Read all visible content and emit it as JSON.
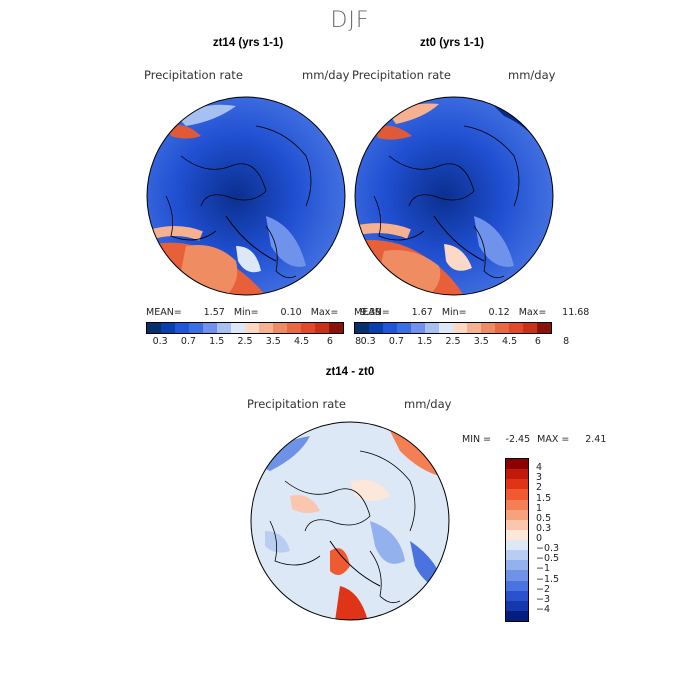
{
  "figure": {
    "title": "DJF"
  },
  "left_map": {
    "title": "zt14 (yrs 1-1)",
    "variable": "Precipitation rate",
    "units": "mm/day",
    "stats": {
      "mean_label": "MEAN=",
      "mean": "1.57",
      "min_label": "Min=",
      "min": "0.10",
      "max_label": "Max=",
      "max": "9.39"
    }
  },
  "right_map": {
    "title": "zt0 (yrs 1-1)",
    "variable": "Precipitation rate",
    "units": "mm/day",
    "stats": {
      "mean_label": "MEAN=",
      "mean": "1.67",
      "min_label": "Min=",
      "min": "0.12",
      "max_label": "Max=",
      "max": "11.68"
    }
  },
  "diff_map": {
    "title": "zt14 - zt0",
    "variable": "Precipitation rate",
    "units": "mm/day",
    "stats": {
      "min_label": "MIN =",
      "min": "-2.45",
      "max_label": "MAX =",
      "max": "2.41"
    }
  },
  "precip_colorbar": {
    "colors": [
      "#08306b",
      "#0a3fae",
      "#1f55d6",
      "#3a6fe4",
      "#6f93ec",
      "#a6c0f2",
      "#dce7f7",
      "#fbd9c6",
      "#f5b190",
      "#ee8b65",
      "#e86a45",
      "#e2482a",
      "#c93218",
      "#8b1208"
    ],
    "tick_labels": [
      "0.3",
      "0.7",
      "1.5",
      "2.5",
      "3.5",
      "4.5",
      "6",
      "8"
    ]
  },
  "diff_colorbar": {
    "colors": [
      "#8b0000",
      "#c21a0a",
      "#e03418",
      "#f05a30",
      "#f47f55",
      "#f7a27d",
      "#fac6ad",
      "#fde6da",
      "#dde8f6",
      "#b9cdf2",
      "#93b1ec",
      "#6e92e5",
      "#4b73df",
      "#2a52cf",
      "#1638ad",
      "#061d80"
    ],
    "tick_labels": [
      "4",
      "3",
      "2",
      "1.5",
      "1",
      "0.5",
      "0.3",
      "0",
      "-0.3",
      "-0.5",
      "-1",
      "-1.5",
      "-2",
      "-3",
      "-4"
    ]
  }
}
